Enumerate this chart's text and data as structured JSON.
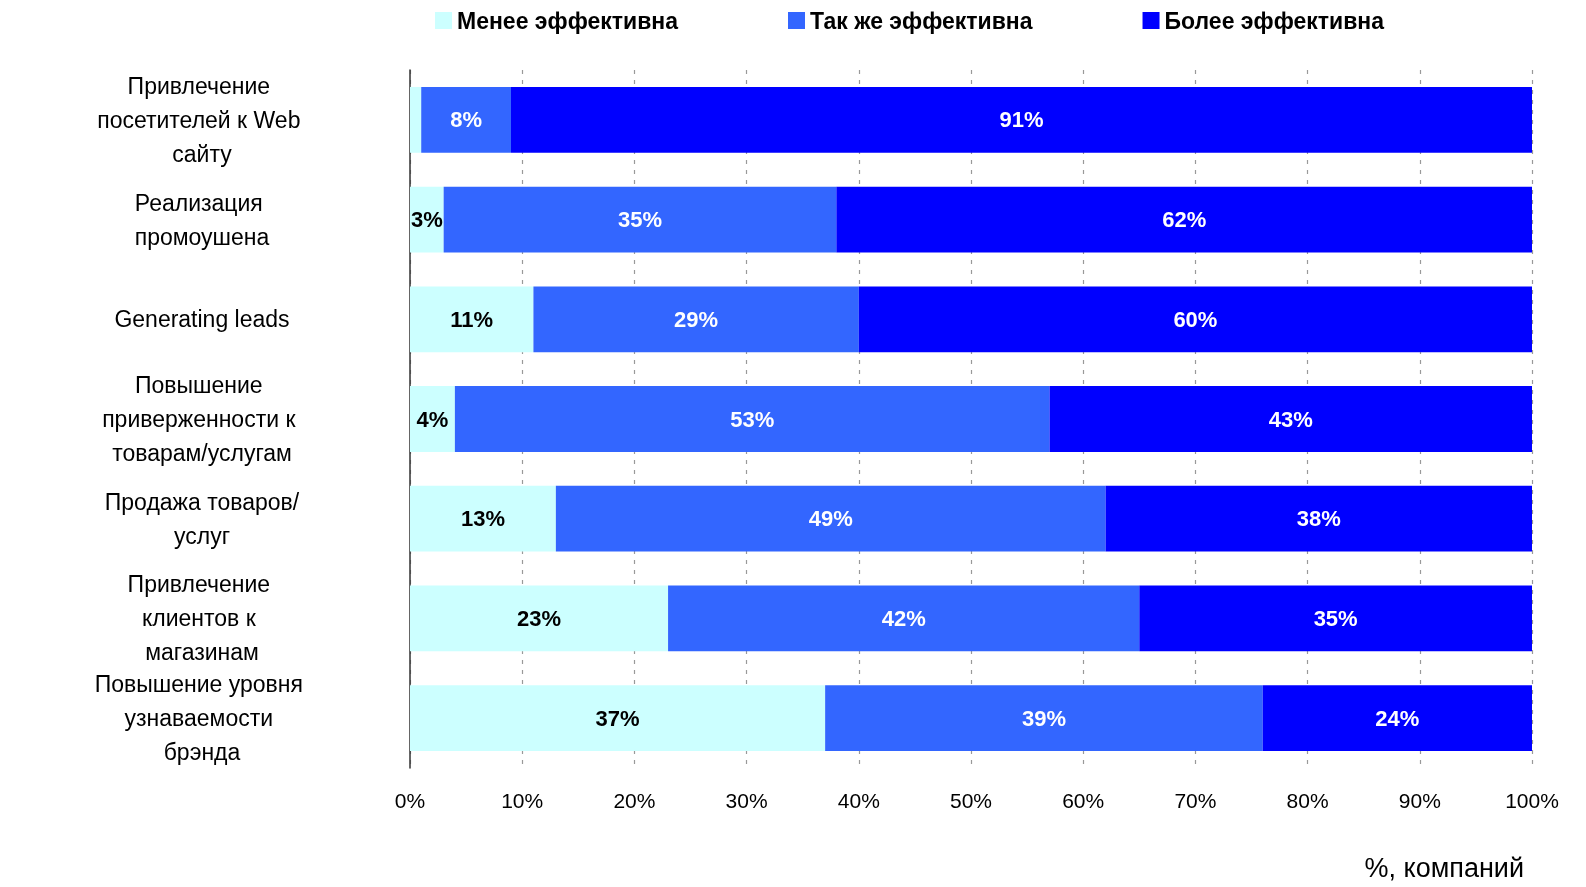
{
  "chart_data": {
    "type": "bar",
    "orientation": "horizontal",
    "stacked": true,
    "xlabel": "%, компаний",
    "categories": [
      "Привлечение посетителей к Web сайту",
      "Реализация промоушена",
      "Generating leads",
      "Повышение приверженности к товарам/услугам",
      "Продажа товаров/услуг",
      "Привлечение клиентов к магазинам",
      "Повышение уровня узнаваемости брэнда"
    ],
    "series": [
      {
        "name": "Менее эффективна",
        "color": "#ccffff",
        "values": [
          1,
          3,
          11,
          4,
          13,
          23,
          37
        ],
        "value_labels": [
          null,
          "3%",
          "11%",
          "4%",
          "13%",
          "23%",
          "37%"
        ]
      },
      {
        "name": "Так же эффективна",
        "color": "#3366ff",
        "values": [
          8,
          35,
          29,
          53,
          49,
          42,
          39
        ],
        "value_labels": [
          "8%",
          "35%",
          "29%",
          "53%",
          "49%",
          "42%",
          "39%"
        ]
      },
      {
        "name": "Более эффективна",
        "color": "#0000ff",
        "values": [
          91,
          62,
          60,
          43,
          38,
          35,
          24
        ],
        "value_labels": [
          "91%",
          "62%",
          "60%",
          "43%",
          "38%",
          "35%",
          "24%"
        ]
      }
    ],
    "xlim": [
      0,
      100
    ],
    "xticks": [
      {
        "value": 0,
        "label": "0%"
      },
      {
        "value": 10,
        "label": "10%"
      },
      {
        "value": 20,
        "label": "20%"
      },
      {
        "value": 30,
        "label": "30%"
      },
      {
        "value": 40,
        "label": "40%"
      },
      {
        "value": 50,
        "label": "50%"
      },
      {
        "value": 60,
        "label": "60%"
      },
      {
        "value": 70,
        "label": "70%"
      },
      {
        "value": 80,
        "label": "80%"
      },
      {
        "value": 90,
        "label": "90%"
      },
      {
        "value": 100,
        "label": "100%"
      }
    ],
    "grid": "x",
    "legend": "top"
  }
}
